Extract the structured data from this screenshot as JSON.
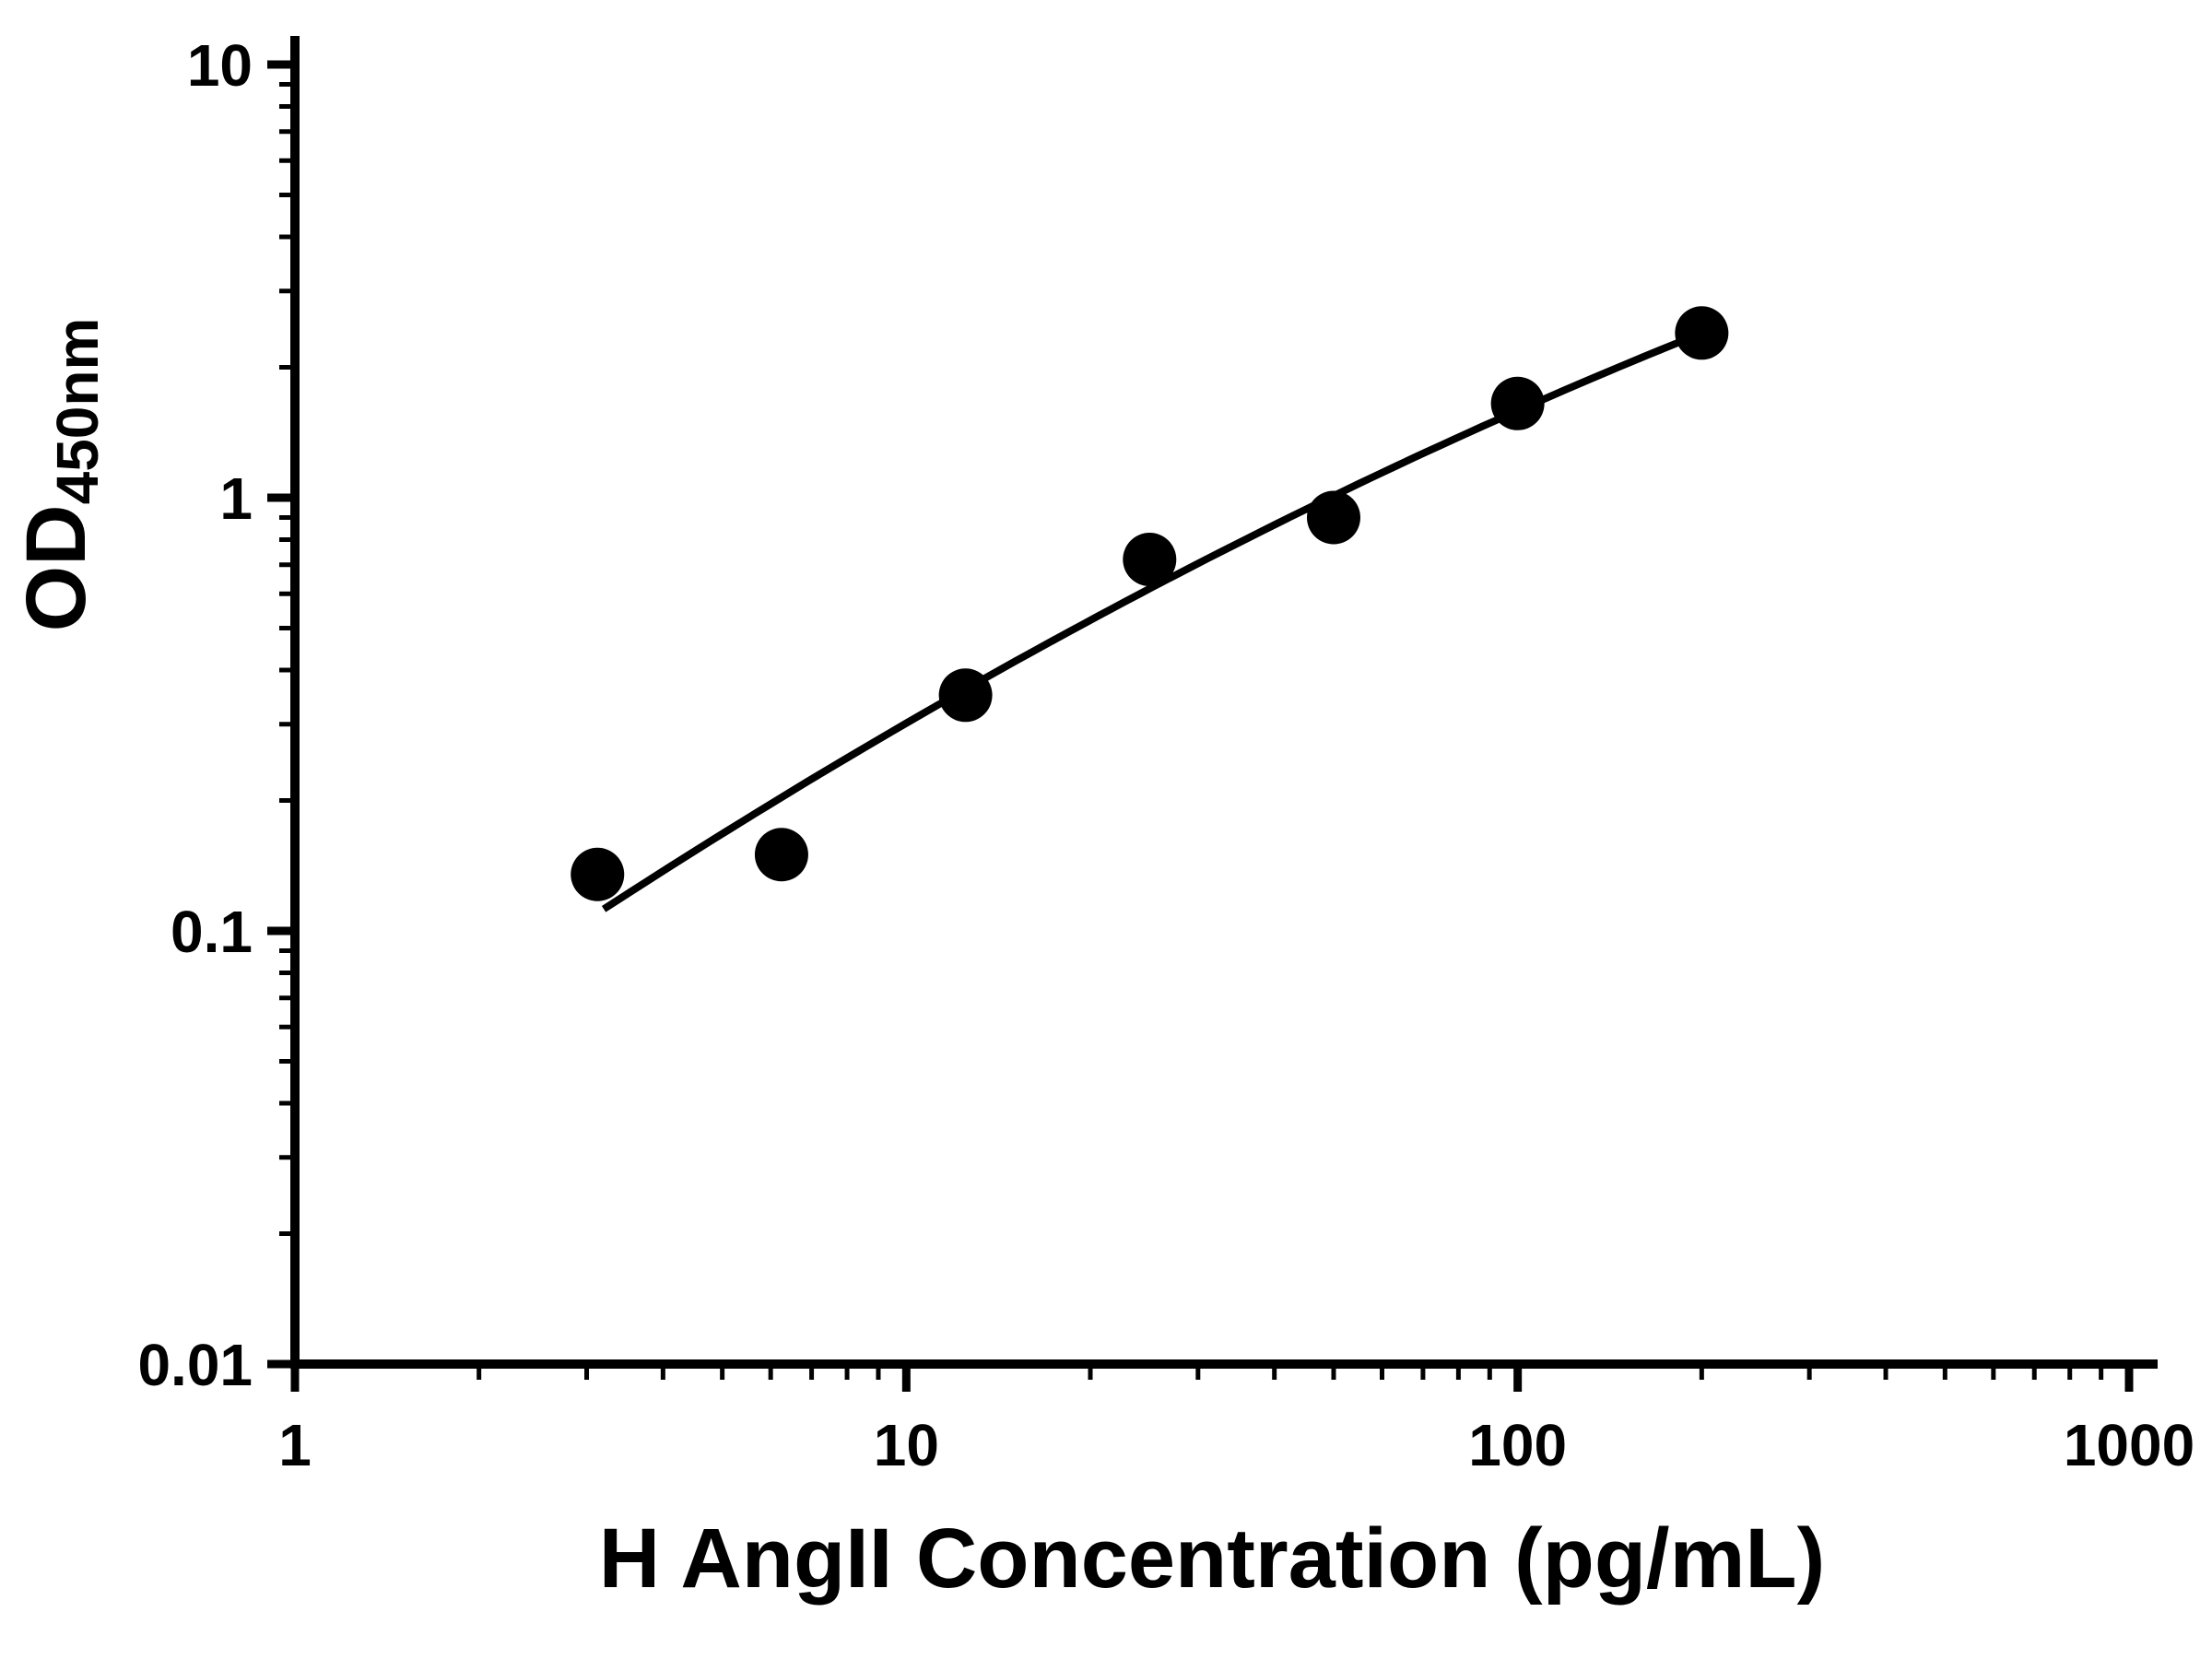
{
  "chart_data": {
    "type": "scatter",
    "xlabel": "H AngII Concentration (pg/mL)",
    "ylabel": "OD450nm",
    "ylabel_parts": {
      "main": "OD",
      "sub": "450nm"
    },
    "x_scale": "log10",
    "y_scale": "log10",
    "xlim": [
      1,
      1000
    ],
    "ylim": [
      0.01,
      10
    ],
    "grid": false,
    "legend": false,
    "x_ticks": [
      {
        "value": 1,
        "label": "1"
      },
      {
        "value": 10,
        "label": "10"
      },
      {
        "value": 100,
        "label": "100"
      },
      {
        "value": 1000,
        "label": "1000"
      }
    ],
    "y_ticks": [
      {
        "value": 10,
        "label": "10"
      },
      {
        "value": 1,
        "label": "1"
      },
      {
        "value": 0.1,
        "label": "0.1"
      },
      {
        "value": 0.01,
        "label": "0.01"
      }
    ],
    "points": [
      {
        "x": 3.125,
        "y": 0.135
      },
      {
        "x": 6.25,
        "y": 0.15
      },
      {
        "x": 12.5,
        "y": 0.35
      },
      {
        "x": 25,
        "y": 0.72
      },
      {
        "x": 50,
        "y": 0.9
      },
      {
        "x": 100,
        "y": 1.65
      },
      {
        "x": 200,
        "y": 2.4
      }
    ],
    "fit_curve": {
      "model": "quadratic in log10(x) -> log10(y)",
      "coefficients": {
        "a": -1.437,
        "b": 1.014,
        "c": -0.0975
      },
      "x_range": [
        3.2,
        200
      ]
    },
    "marker_color": "#000000",
    "line_color": "#000000",
    "axis_color": "#000000",
    "background_color": "#ffffff"
  }
}
